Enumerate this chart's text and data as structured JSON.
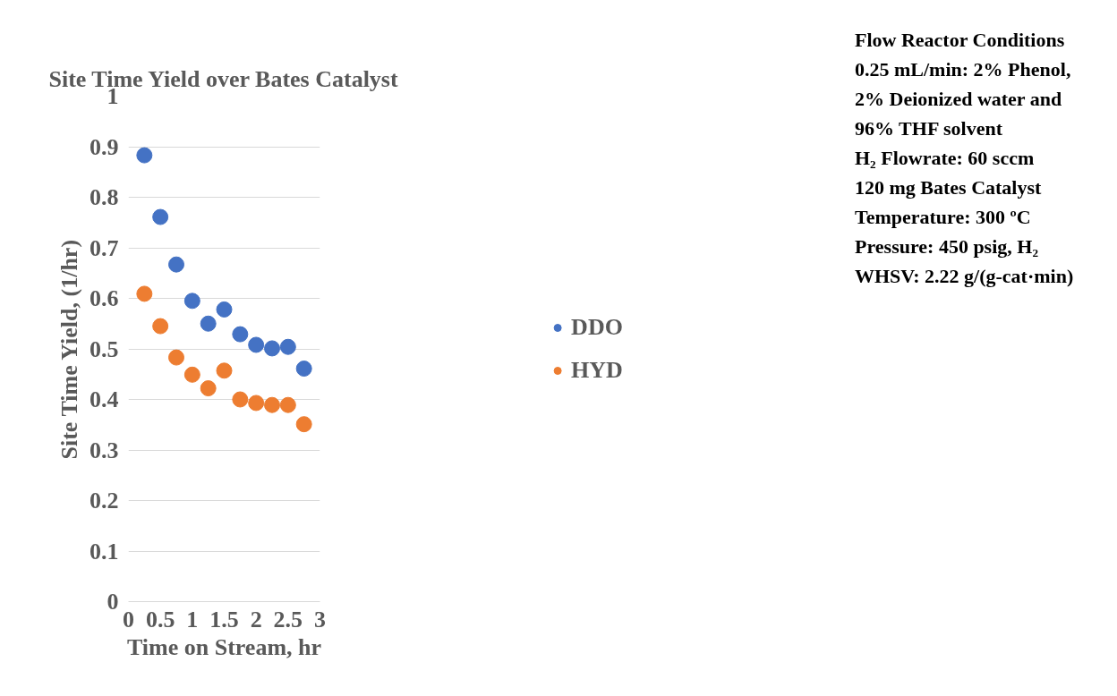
{
  "chart_data": {
    "type": "scatter",
    "title": "Site Time Yield over Bates Catalyst",
    "xlabel": "Time on Stream, hr",
    "ylabel": "Site Time Yield, (1/hr)",
    "x": [
      0.25,
      0.5,
      0.75,
      1.0,
      1.25,
      1.5,
      1.75,
      2.0,
      2.25,
      2.5,
      2.75
    ],
    "series": [
      {
        "name": "DDO",
        "color": "#4472c4",
        "values": [
          0.883,
          0.761,
          0.667,
          0.595,
          0.55,
          0.578,
          0.529,
          0.508,
          0.501,
          0.504,
          0.461
        ]
      },
      {
        "name": "HYD",
        "color": "#ed7d31",
        "values": [
          0.609,
          0.545,
          0.483,
          0.449,
          0.422,
          0.457,
          0.4,
          0.393,
          0.389,
          0.389,
          0.351
        ]
      }
    ],
    "xlim": [
      0,
      3
    ],
    "xticks": [
      0,
      0.5,
      1,
      1.5,
      2,
      2.5,
      3
    ],
    "ylim": [
      0,
      1
    ],
    "yticks": [
      0,
      0.1,
      0.2,
      0.3,
      0.4,
      0.5,
      0.6,
      0.7,
      0.8,
      0.9,
      1
    ],
    "grid": "y",
    "legend": "right",
    "marker": "circle",
    "annotations": [
      "Flow Reactor Conditions",
      "0.25 mL/min: 2% Phenol,",
      "2% Deionized water and",
      "96% THF solvent",
      "H₂ Flowrate: 60 sccm",
      "120 mg Bates Catalyst",
      "Temperature: 300 ºC",
      "Pressure: 450 psig, H₂",
      "WHSV: 2.22 g/(g-cat·min)"
    ]
  }
}
